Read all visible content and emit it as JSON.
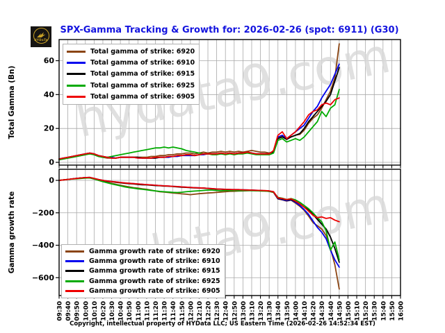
{
  "logo": {
    "text": "HYDaTa"
  },
  "header": {
    "title": "SPX-Gamma Tracking & Growth for: 2026-02-26 (spot: 6911) (G30)",
    "title_color": "#1414DF"
  },
  "watermark": {
    "text": "hydata9.com",
    "color": "#d9d9d9"
  },
  "footer": {
    "text": "Copyright, intellectual property of HYData LLC; US Eastern Time (2026-02-26 14:52:34 EST)"
  },
  "chart_data": [
    {
      "type": "line",
      "title": "",
      "ylabel": "Total Gamma (Bn)",
      "xlabel": "",
      "grid": true,
      "legend_position": "upper left",
      "ylim": [
        -3,
        73
      ],
      "yticks": [
        0,
        20,
        40,
        60
      ],
      "x_tick_labels": [
        "09:30",
        "09:40",
        "09:50",
        "10:00",
        "10:10",
        "10:20",
        "10:30",
        "10:40",
        "10:50",
        "11:00",
        "11:10",
        "11:20",
        "11:30",
        "11:40",
        "11:50",
        "12:00",
        "12:10",
        "12:20",
        "12:30",
        "12:40",
        "12:50",
        "13:00",
        "13:10",
        "13:20",
        "13:30",
        "13:40",
        "13:50",
        "14:00",
        "14:10",
        "14:20",
        "14:30",
        "14:40",
        "14:50",
        "15:00",
        "15:10",
        "15:20",
        "15:30",
        "15:40",
        "15:50",
        "16:00"
      ],
      "x_start": "09:30",
      "x_data_step_minutes": 5,
      "series": [
        {
          "name": "Total gamma of strike: 6920",
          "color": "#8B4513",
          "values": [
            1.5,
            2,
            2.5,
            3,
            3.5,
            4,
            4.5,
            5,
            4.5,
            3.5,
            3,
            2.5,
            2.5,
            2.5,
            3,
            3,
            3,
            3,
            3,
            3,
            3,
            3.5,
            3.5,
            4,
            4,
            4.5,
            4.5,
            5,
            5,
            5.5,
            5.5,
            5,
            5.5,
            6,
            5.5,
            6,
            6,
            6.5,
            6,
            6.5,
            6,
            6.5,
            6,
            6.5,
            7,
            6.5,
            6,
            6,
            5.5,
            6.5,
            14.5,
            15.5,
            14,
            15,
            16,
            16.5,
            19,
            23,
            26,
            28,
            32,
            37,
            42,
            50,
            70
          ]
        },
        {
          "name": "Total gamma of strike: 6910",
          "color": "#0000EE",
          "values": [
            2,
            2.5,
            3,
            3.5,
            4,
            4.5,
            5,
            5.5,
            5,
            4,
            3.5,
            3,
            3,
            2.5,
            3,
            3,
            3,
            3,
            2.5,
            2.5,
            2.5,
            2.5,
            2.5,
            3,
            3,
            3,
            3.5,
            3.5,
            4,
            4,
            4,
            4,
            4.5,
            4.5,
            5,
            5,
            5,
            5,
            5,
            5.5,
            5,
            5.5,
            5.5,
            6,
            5.5,
            5,
            5,
            5,
            5,
            6.5,
            15,
            16,
            14,
            16,
            18,
            20,
            22,
            26,
            30,
            33,
            38,
            42,
            46,
            52,
            58
          ]
        },
        {
          "name": "Total gamma of strike: 6915",
          "color": "#000000",
          "values": [
            2,
            2.5,
            3,
            3.5,
            4,
            4.5,
            5,
            5.5,
            5,
            4,
            3.5,
            3,
            2.5,
            2.5,
            3,
            3,
            3,
            3,
            3,
            2.5,
            2.5,
            2.5,
            2.5,
            3,
            3,
            3.5,
            3.5,
            4,
            4,
            4.5,
            4.5,
            4,
            4.5,
            5,
            5,
            5,
            5,
            5.5,
            5,
            5.5,
            5,
            5.5,
            5.5,
            6,
            5.5,
            5,
            5,
            5,
            5,
            6,
            14,
            15,
            13.5,
            15,
            16,
            17,
            20,
            24,
            27,
            30,
            33,
            36,
            40,
            48,
            56
          ]
        },
        {
          "name": "Total gamma of strike: 6925",
          "color": "#00AA00",
          "values": [
            1.5,
            2,
            2.5,
            3,
            3.5,
            4,
            4.5,
            5,
            4.5,
            3.5,
            3,
            3,
            3.5,
            4,
            4.5,
            5,
            5.5,
            6,
            6.5,
            7,
            7.5,
            8,
            8.5,
            8.5,
            9,
            8.5,
            9,
            8.5,
            8,
            7,
            6.5,
            6,
            5.5,
            5,
            5,
            4.5,
            4.5,
            5,
            4.5,
            5,
            4.5,
            5,
            5,
            5.5,
            5,
            4.5,
            4.5,
            4.5,
            4.5,
            5.5,
            13,
            14,
            12,
            13,
            14,
            13,
            15,
            18,
            21,
            24,
            30,
            27,
            32,
            34,
            43
          ]
        },
        {
          "name": "Total gamma of strike: 6905",
          "color": "#EE0000",
          "values": [
            2,
            2.5,
            3,
            3.5,
            4,
            4.5,
            5,
            5.5,
            5,
            4,
            3.5,
            3,
            2.5,
            2.5,
            3,
            3,
            3,
            3,
            2.5,
            2.5,
            2.5,
            2.5,
            3,
            3,
            3,
            3.5,
            3.5,
            4,
            4,
            4.5,
            4.5,
            4,
            4.5,
            5,
            5,
            5,
            5,
            5.5,
            5,
            5.5,
            5,
            5.5,
            5.5,
            6,
            5.5,
            5,
            5,
            5,
            5,
            7,
            16,
            18,
            14,
            16,
            18,
            21,
            24,
            28,
            30,
            31,
            34,
            35,
            34,
            37,
            38
          ]
        }
      ]
    },
    {
      "type": "line",
      "title": "",
      "ylabel": "Gamma growth rate",
      "xlabel": "",
      "grid": true,
      "legend_position": "lower left",
      "ylim": [
        -710,
        68
      ],
      "yticks": [
        0,
        -200,
        -400,
        -600
      ],
      "x_tick_labels": [
        "09:30",
        "09:40",
        "09:50",
        "10:00",
        "10:10",
        "10:20",
        "10:30",
        "10:40",
        "10:50",
        "11:00",
        "11:10",
        "11:20",
        "11:30",
        "11:40",
        "11:50",
        "12:00",
        "12:10",
        "12:20",
        "12:30",
        "12:40",
        "12:50",
        "13:00",
        "13:10",
        "13:20",
        "13:30",
        "13:40",
        "13:50",
        "14:00",
        "14:10",
        "14:20",
        "14:30",
        "14:40",
        "14:50",
        "15:00",
        "15:10",
        "15:20",
        "15:30",
        "15:40",
        "15:50",
        "16:00"
      ],
      "x_start": "09:30",
      "x_data_step_minutes": 5,
      "series": [
        {
          "name": "Gamma growth rate of strike: 6920",
          "color": "#8B4513",
          "values": [
            0,
            3,
            6,
            9,
            12,
            15,
            17,
            18,
            10,
            2,
            -5,
            -12,
            -18,
            -25,
            -30,
            -35,
            -40,
            -45,
            -48,
            -52,
            -55,
            -60,
            -65,
            -70,
            -72,
            -75,
            -78,
            -80,
            -83,
            -85,
            -88,
            -85,
            -82,
            -80,
            -78,
            -76,
            -74,
            -72,
            -70,
            -68,
            -67,
            -66,
            -65,
            -64,
            -63,
            -64,
            -65,
            -66,
            -68,
            -75,
            -115,
            -120,
            -128,
            -122,
            -140,
            -160,
            -185,
            -220,
            -260,
            -280,
            -300,
            -340,
            -420,
            -520,
            -670
          ]
        },
        {
          "name": "Gamma growth rate of strike: 6910",
          "color": "#0000EE",
          "values": [
            0,
            3,
            6,
            9,
            12,
            15,
            17,
            18,
            12,
            5,
            0,
            -4,
            -7,
            -10,
            -13,
            -16,
            -18,
            -20,
            -22,
            -24,
            -26,
            -28,
            -30,
            -32,
            -34,
            -35,
            -37,
            -38,
            -40,
            -42,
            -43,
            -45,
            -46,
            -47,
            -49,
            -51,
            -53,
            -54,
            -55,
            -56,
            -57,
            -57,
            -58,
            -59,
            -60,
            -61,
            -62,
            -64,
            -66,
            -72,
            -112,
            -118,
            -125,
            -120,
            -135,
            -155,
            -180,
            -210,
            -250,
            -290,
            -320,
            -360,
            -430,
            -490,
            -535
          ]
        },
        {
          "name": "Gamma growth rate of strike: 6915",
          "color": "#000000",
          "values": [
            0,
            3,
            6,
            9,
            12,
            15,
            17,
            18,
            12,
            5,
            0,
            -5,
            -8,
            -12,
            -15,
            -18,
            -20,
            -22,
            -25,
            -27,
            -28,
            -30,
            -32,
            -33,
            -35,
            -36,
            -38,
            -40,
            -42,
            -43,
            -45,
            -46,
            -47,
            -48,
            -50,
            -52,
            -54,
            -55,
            -56,
            -57,
            -58,
            -58,
            -59,
            -60,
            -60,
            -62,
            -63,
            -64,
            -65,
            -70,
            -110,
            -115,
            -120,
            -118,
            -130,
            -145,
            -165,
            -180,
            -210,
            -240,
            -270,
            -300,
            -350,
            -420,
            -505
          ]
        },
        {
          "name": "Gamma growth rate of strike: 6925",
          "color": "#00AA00",
          "values": [
            0,
            3,
            6,
            8,
            10,
            12,
            14,
            15,
            8,
            0,
            -8,
            -15,
            -22,
            -28,
            -34,
            -40,
            -45,
            -48,
            -52,
            -55,
            -58,
            -62,
            -65,
            -68,
            -70,
            -72,
            -74,
            -75,
            -73,
            -70,
            -68,
            -66,
            -64,
            -62,
            -60,
            -60,
            -62,
            -64,
            -62,
            -63,
            -62,
            -64,
            -63,
            -62,
            -63,
            -64,
            -65,
            -66,
            -68,
            -72,
            -105,
            -110,
            -118,
            -112,
            -120,
            -135,
            -155,
            -175,
            -200,
            -230,
            -255,
            -310,
            -430,
            -380,
            -490
          ]
        },
        {
          "name": "Gamma growth rate of strike: 6905",
          "color": "#EE0000",
          "values": [
            0,
            3,
            6,
            9,
            12,
            15,
            17,
            18,
            12,
            5,
            0,
            -4,
            -7,
            -10,
            -13,
            -16,
            -18,
            -20,
            -22,
            -24,
            -26,
            -28,
            -30,
            -32,
            -34,
            -35,
            -37,
            -38,
            -40,
            -42,
            -43,
            -45,
            -46,
            -47,
            -49,
            -51,
            -53,
            -54,
            -55,
            -56,
            -57,
            -57,
            -58,
            -59,
            -60,
            -61,
            -62,
            -63,
            -65,
            -70,
            -108,
            -112,
            -118,
            -114,
            -128,
            -145,
            -165,
            -190,
            -215,
            -230,
            -225,
            -235,
            -230,
            -245,
            -255
          ]
        }
      ]
    }
  ]
}
